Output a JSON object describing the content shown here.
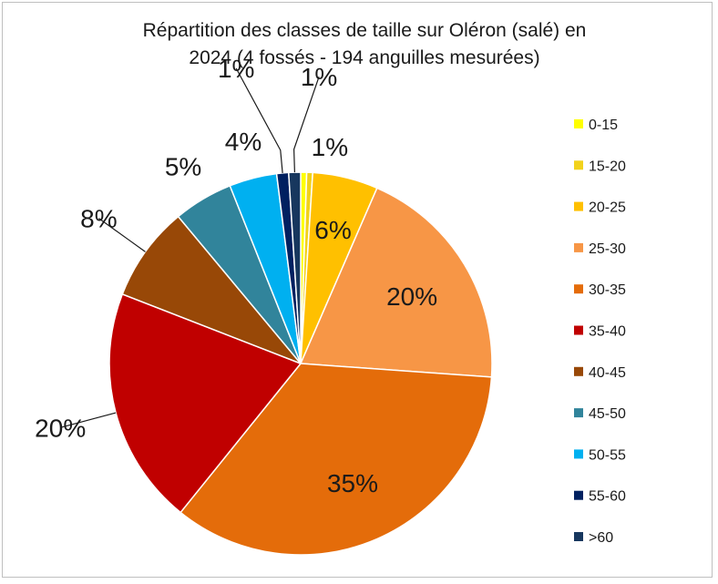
{
  "chart_data": {
    "type": "pie",
    "title_lines": [
      "Répartition des classes de taille sur Oléron (salé) en",
      "2024 (4 fossés - 194 anguilles mesurées)"
    ],
    "legend_position": "right",
    "slices": [
      {
        "name": "0-15",
        "value": 0.5,
        "label": "",
        "color": "#ffff00"
      },
      {
        "name": "15-20",
        "value": 0.5,
        "label": "1%",
        "color": "#f2d21b"
      },
      {
        "name": "20-25",
        "value": 5.5,
        "label": "6%",
        "color": "#ffc000"
      },
      {
        "name": "25-30",
        "value": 19.5,
        "label": "20%",
        "color": "#f79646"
      },
      {
        "name": "30-35",
        "value": 34.5,
        "label": "35%",
        "color": "#e46c0a"
      },
      {
        "name": "35-40",
        "value": 20.0,
        "label": "20%",
        "color": "#c00000"
      },
      {
        "name": "40-45",
        "value": 8.0,
        "label": "8%",
        "color": "#984807"
      },
      {
        "name": "45-50",
        "value": 5.0,
        "label": "5%",
        "color": "#31849b"
      },
      {
        "name": "50-55",
        "value": 4.0,
        "label": "4%",
        "color": "#00b0f0"
      },
      {
        "name": "55-60",
        "value": 1.0,
        "label": "1%",
        "color": "#002060"
      },
      {
        "name": ">60",
        "value": 1.0,
        "label": "1%",
        "color": "#17375e"
      }
    ]
  }
}
